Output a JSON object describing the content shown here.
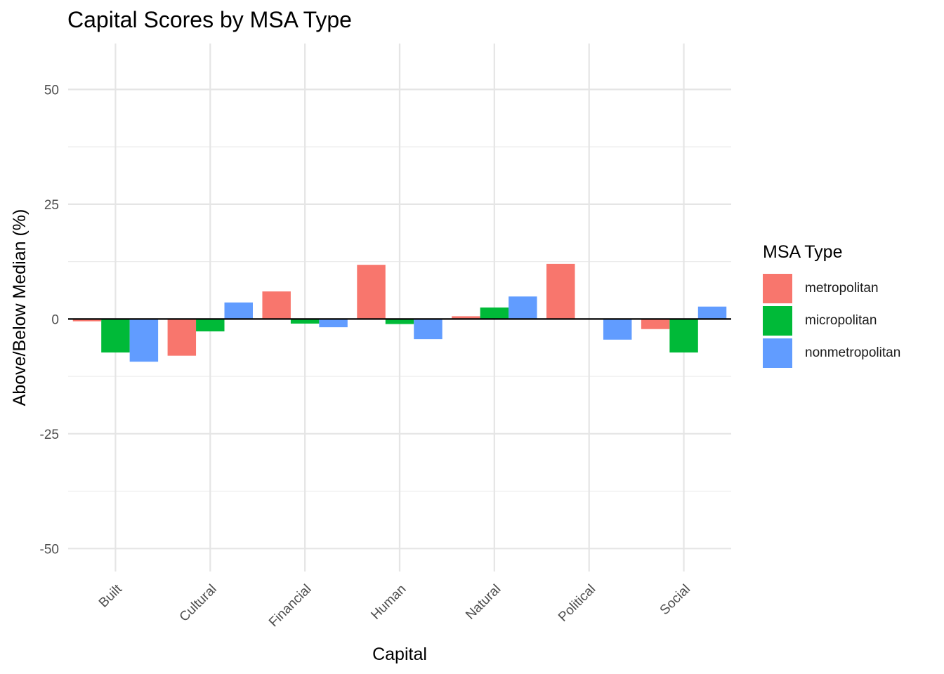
{
  "chart_data": {
    "type": "bar",
    "title": "Capital Scores by MSA Type",
    "xlabel": "Capital",
    "ylabel": "Above/Below Median (%)",
    "ylim": [
      -55,
      60
    ],
    "yticks": [
      -50,
      -25,
      0,
      25,
      50
    ],
    "categories": [
      "Built",
      "Cultural",
      "Financial",
      "Human",
      "Natural",
      "Political",
      "Social"
    ],
    "series": [
      {
        "name": "metropolitan",
        "color": "#F8766D",
        "values": [
          -0.5,
          -8.0,
          6.0,
          11.8,
          0.6,
          12.0,
          -2.2
        ]
      },
      {
        "name": "micropolitan",
        "color": "#00BA38",
        "values": [
          -7.3,
          -2.7,
          -1.0,
          -1.1,
          2.5,
          0.0,
          -7.3
        ]
      },
      {
        "name": "nonmetropolitan",
        "color": "#619CFF",
        "values": [
          -9.3,
          3.6,
          -1.8,
          -4.4,
          4.9,
          -4.5,
          2.7
        ]
      }
    ],
    "legend_title": "MSA Type",
    "legend_position": "right",
    "grid": true
  }
}
